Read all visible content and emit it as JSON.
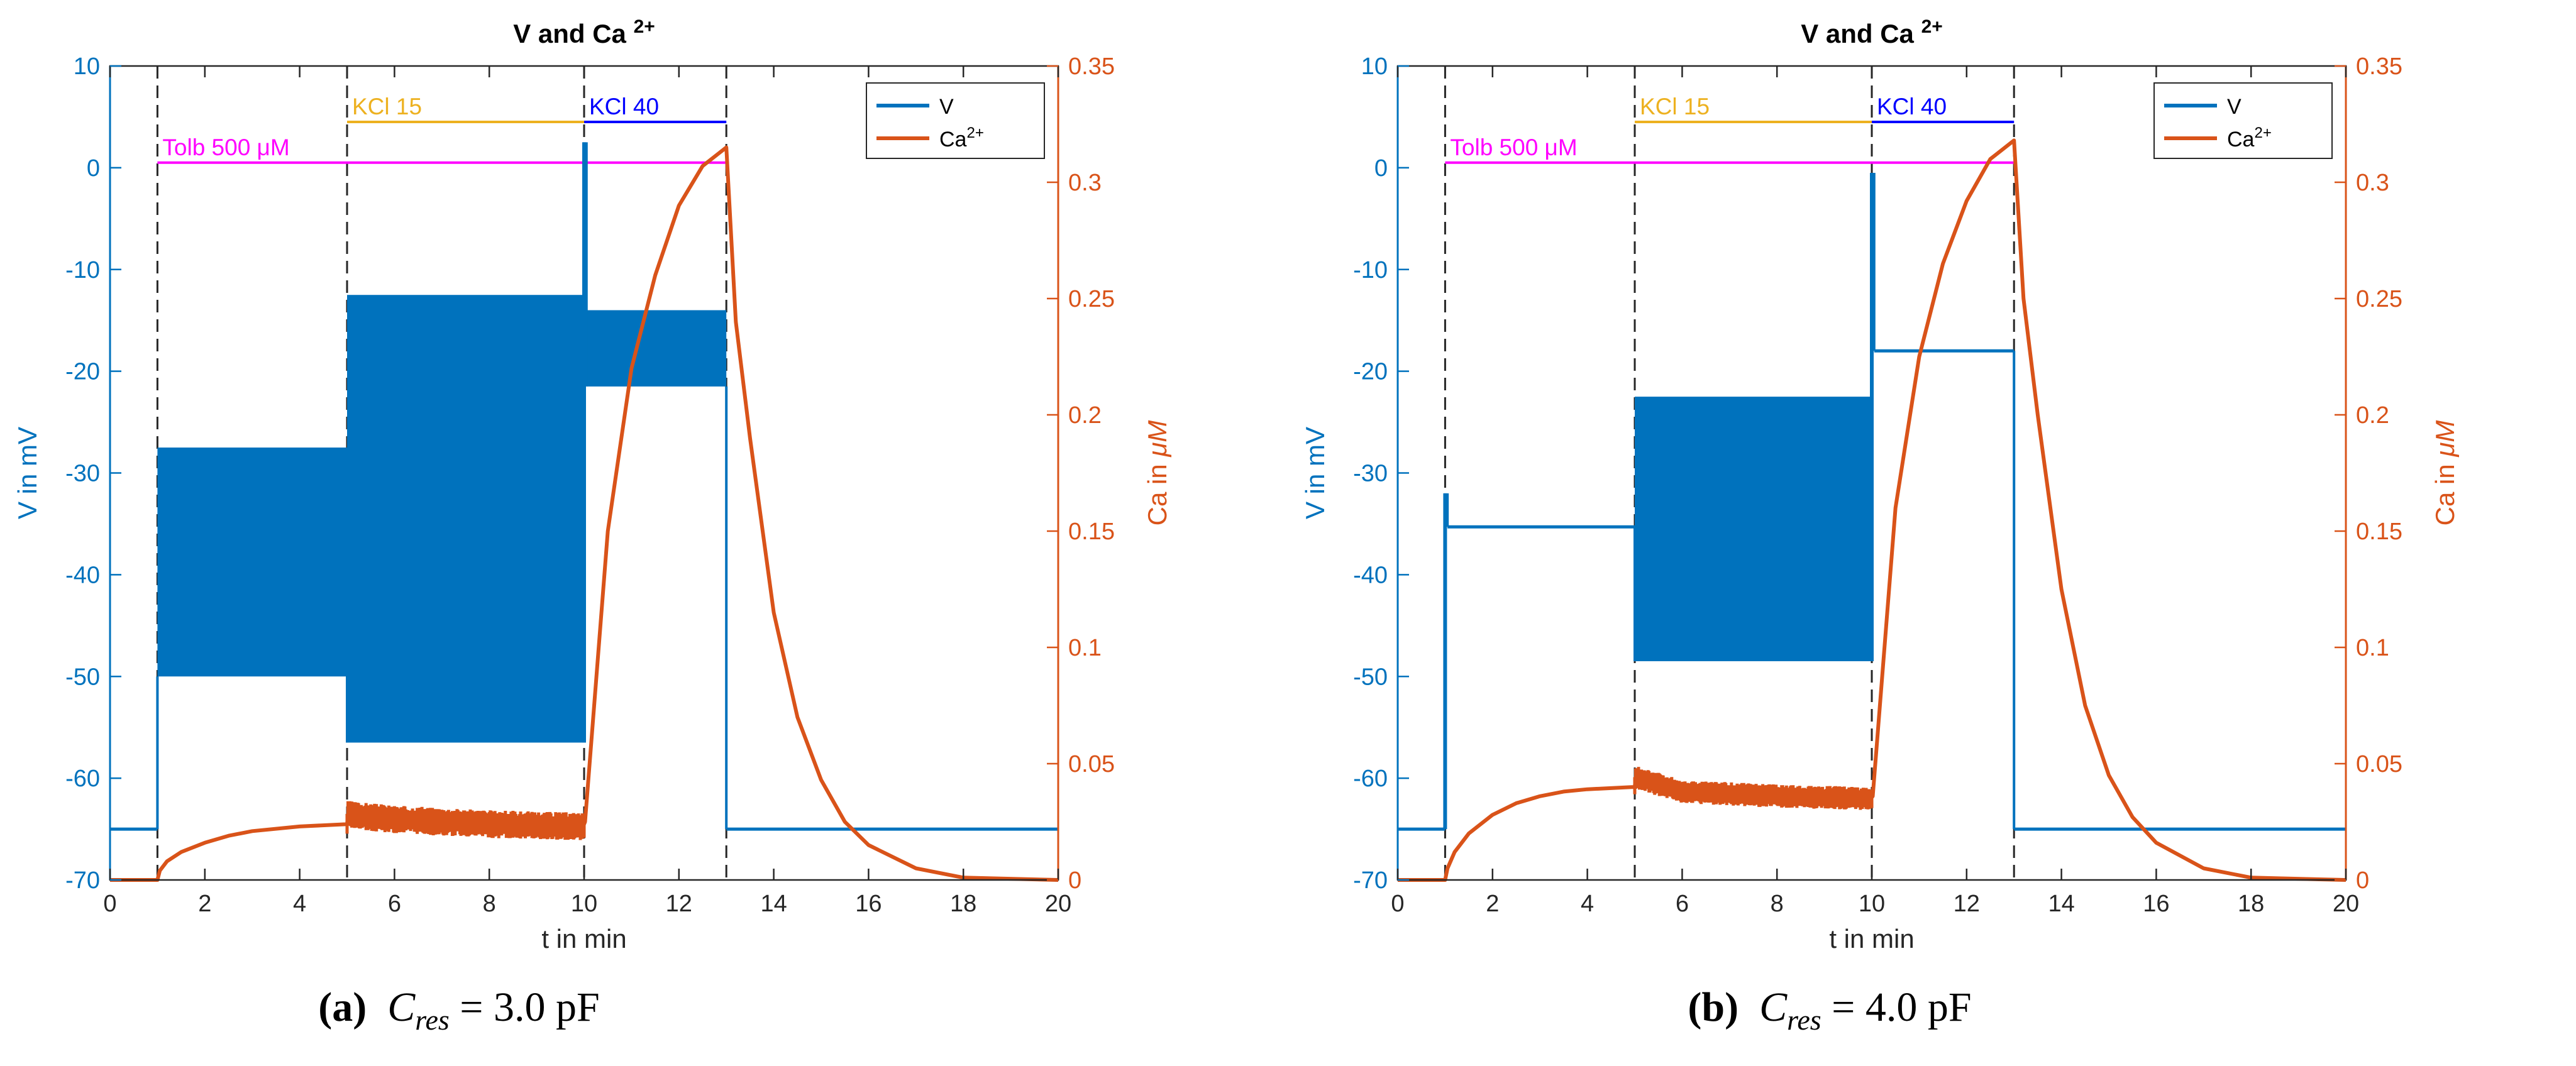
{
  "chart_data": [
    {
      "type": "line",
      "panel": "a",
      "title": "V and Ca",
      "title_superscript": "2+",
      "xlabel": "t in min",
      "ylabel_left": "V in mV",
      "ylabel_right_prefix": "Ca in ",
      "ylabel_right_unit": "μM",
      "xlim": [
        0,
        20
      ],
      "ylim_left": [
        -70,
        10
      ],
      "ylim_right": [
        0,
        0.35
      ],
      "xticks": [
        "0",
        "2",
        "4",
        "6",
        "8",
        "10",
        "12",
        "14",
        "16",
        "18",
        "20"
      ],
      "yticks_left": [
        "10",
        "0",
        "-10",
        "-20",
        "-30",
        "-40",
        "-50",
        "-60",
        "-70"
      ],
      "yticks_right": [
        "0.35",
        "0.3",
        "0.25",
        "0.2",
        "0.15",
        "0.1",
        "0.05",
        "0"
      ],
      "dashed_lines_x": [
        1,
        5,
        10,
        13
      ],
      "annotations": [
        {
          "label": "Tolb 500 μM",
          "x_start": 1,
          "x_end": 13,
          "y": 0.5,
          "color": "#ff00ff"
        },
        {
          "label": "KCl 15",
          "x_start": 5,
          "x_end": 10,
          "y": 4.5,
          "color": "#edb120"
        },
        {
          "label": "KCl 40",
          "x_start": 10,
          "x_end": 13,
          "y": 4.5,
          "color": "#0000ff"
        }
      ],
      "legend": {
        "position": "top-right",
        "entries": [
          {
            "label": "V"
          },
          {
            "label": "Ca",
            "superscript": "2+"
          }
        ]
      },
      "series": [
        {
          "name": "V",
          "axis": "left",
          "color": "#0072bd",
          "segments": [
            {
              "t": [
                0,
                1
              ],
              "v": -65
            },
            {
              "t": [
                1,
                5
              ],
              "band": [
                -50,
                -27.5
              ]
            },
            {
              "t": [
                5,
                10
              ],
              "band": [
                -56.5,
                -12.5
              ]
            },
            {
              "t": [
                10,
                10.05
              ],
              "spike": 2.5
            },
            {
              "t": [
                10.05,
                13
              ],
              "band": [
                -21.5,
                -14
              ]
            },
            {
              "t": [
                13,
                20
              ],
              "v": -65
            }
          ]
        },
        {
          "name": "Ca2+",
          "axis": "right",
          "color": "#d95319",
          "points": [
            [
              0,
              0
            ],
            [
              1,
              0
            ],
            [
              1.05,
              0.004
            ],
            [
              1.2,
              0.008
            ],
            [
              1.5,
              0.012
            ],
            [
              2,
              0.016
            ],
            [
              2.5,
              0.019
            ],
            [
              3,
              0.021
            ],
            [
              4,
              0.023
            ],
            [
              5,
              0.024
            ],
            [
              5.02,
              0.028
            ],
            [
              6,
              0.026
            ],
            [
              8,
              0.024
            ],
            [
              9.98,
              0.023
            ],
            [
              10.02,
              0.025
            ],
            [
              10.5,
              0.15
            ],
            [
              11,
              0.22
            ],
            [
              11.5,
              0.26
            ],
            [
              12,
              0.29
            ],
            [
              12.5,
              0.307
            ],
            [
              13,
              0.315
            ],
            [
              13.2,
              0.24
            ],
            [
              13.5,
              0.19
            ],
            [
              14,
              0.115
            ],
            [
              14.5,
              0.07
            ],
            [
              15,
              0.043
            ],
            [
              15.5,
              0.025
            ],
            [
              16,
              0.015
            ],
            [
              17,
              0.005
            ],
            [
              18,
              0.001
            ],
            [
              20,
              0
            ]
          ],
          "noise_band": {
            "t": [
              5,
              10
            ],
            "amplitude": 0.006
          }
        }
      ]
    },
    {
      "type": "line",
      "panel": "b",
      "title": "V and Ca",
      "title_superscript": "2+",
      "xlabel": "t in min",
      "ylabel_left": "V in mV",
      "ylabel_right_prefix": "Ca in ",
      "ylabel_right_unit": "μM",
      "xlim": [
        0,
        20
      ],
      "ylim_left": [
        -70,
        10
      ],
      "ylim_right": [
        0,
        0.35
      ],
      "xticks": [
        "0",
        "2",
        "4",
        "6",
        "8",
        "10",
        "12",
        "14",
        "16",
        "18",
        "20"
      ],
      "yticks_left": [
        "10",
        "0",
        "-10",
        "-20",
        "-30",
        "-40",
        "-50",
        "-60",
        "-70"
      ],
      "yticks_right": [
        "0.35",
        "0.3",
        "0.25",
        "0.2",
        "0.15",
        "0.1",
        "0.05",
        "0"
      ],
      "dashed_lines_x": [
        1,
        5,
        10,
        13
      ],
      "annotations": [
        {
          "label": "Tolb 500 μM",
          "x_start": 1,
          "x_end": 13,
          "y": 0.5,
          "color": "#ff00ff"
        },
        {
          "label": "KCl 15",
          "x_start": 5,
          "x_end": 10,
          "y": 4.5,
          "color": "#edb120"
        },
        {
          "label": "KCl 40",
          "x_start": 10,
          "x_end": 13,
          "y": 4.5,
          "color": "#0000ff"
        }
      ],
      "legend": {
        "position": "top-right",
        "entries": [
          {
            "label": "V"
          },
          {
            "label": "Ca",
            "superscript": "2+"
          }
        ]
      },
      "series": [
        {
          "name": "V",
          "axis": "left",
          "color": "#0072bd",
          "segments": [
            {
              "t": [
                0,
                1
              ],
              "v": -65
            },
            {
              "t": [
                1,
                1.05
              ],
              "spike": -32
            },
            {
              "t": [
                1.05,
                5
              ],
              "v": -35.3
            },
            {
              "t": [
                5,
                10
              ],
              "band": [
                -48.5,
                -22.5
              ]
            },
            {
              "t": [
                10,
                10.05
              ],
              "spike": -0.5
            },
            {
              "t": [
                10.05,
                13
              ],
              "v": -18
            },
            {
              "t": [
                13,
                20
              ],
              "v": -65
            }
          ]
        },
        {
          "name": "Ca2+",
          "axis": "right",
          "color": "#d95319",
          "points": [
            [
              0,
              0
            ],
            [
              1,
              0
            ],
            [
              1.05,
              0.005
            ],
            [
              1.2,
              0.012
            ],
            [
              1.5,
              0.02
            ],
            [
              2,
              0.028
            ],
            [
              2.5,
              0.033
            ],
            [
              3,
              0.036
            ],
            [
              3.5,
              0.038
            ],
            [
              4,
              0.039
            ],
            [
              5,
              0.04
            ],
            [
              5.02,
              0.044
            ],
            [
              6,
              0.038
            ],
            [
              8,
              0.036
            ],
            [
              9.98,
              0.035
            ],
            [
              10.02,
              0.036
            ],
            [
              10.5,
              0.16
            ],
            [
              11,
              0.225
            ],
            [
              11.5,
              0.265
            ],
            [
              12,
              0.292
            ],
            [
              12.5,
              0.31
            ],
            [
              13,
              0.318
            ],
            [
              13.2,
              0.25
            ],
            [
              13.5,
              0.2
            ],
            [
              14,
              0.125
            ],
            [
              14.5,
              0.075
            ],
            [
              15,
              0.045
            ],
            [
              15.5,
              0.027
            ],
            [
              16,
              0.016
            ],
            [
              17,
              0.005
            ],
            [
              18,
              0.001
            ],
            [
              20,
              0
            ]
          ],
          "noise_band": {
            "t": [
              5,
              10
            ],
            "amplitude": 0.005
          }
        }
      ]
    }
  ],
  "captions": [
    {
      "label": "(a)",
      "var": "C",
      "sub": "res",
      "eq": " = 3.0 pF"
    },
    {
      "label": "(b)",
      "var": "C",
      "sub": "res",
      "eq": " = 4.0 pF"
    }
  ],
  "colors": {
    "v_axis": "#0072bd",
    "ca_axis": "#d95319",
    "axis_box": "#262626",
    "dashed": "#262626"
  }
}
